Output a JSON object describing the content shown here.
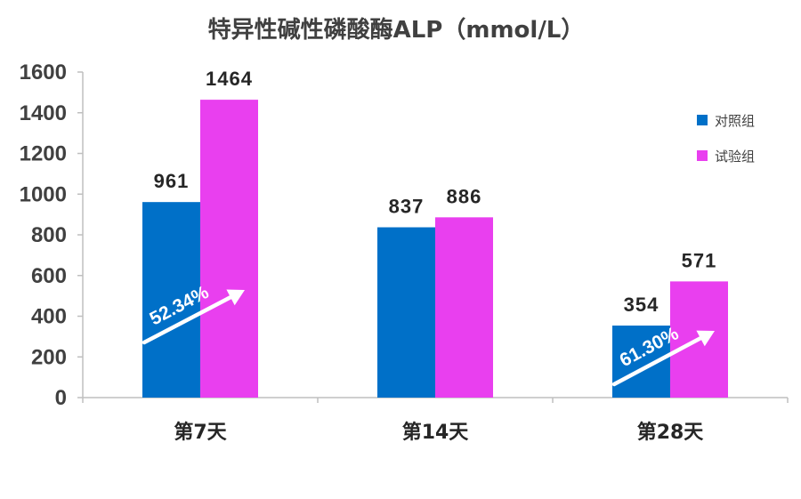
{
  "chart_data": {
    "type": "bar",
    "title": "特异性碱性磷酸酶ALP（mmol/L）",
    "xlabel": "",
    "ylabel": "",
    "categories": [
      "第7天",
      "第14天",
      "第28天"
    ],
    "series": [
      {
        "name": "对照组",
        "values": [
          961,
          837,
          354
        ],
        "color": "#0070C8"
      },
      {
        "name": "试验组",
        "values": [
          1464,
          886,
          571
        ],
        "color": "#E93FEF"
      }
    ],
    "ylim": [
      0,
      1600
    ],
    "yticks": [
      0,
      200,
      400,
      600,
      800,
      1000,
      1200,
      1400,
      1600
    ],
    "grid": false,
    "legend_position": "right",
    "annotations": [
      {
        "text": "52.34%",
        "category": "第7天",
        "icon": "arrow-up-right-icon"
      },
      {
        "text": "61.30%",
        "category": "第28天",
        "icon": "arrow-up-right-icon"
      }
    ]
  }
}
